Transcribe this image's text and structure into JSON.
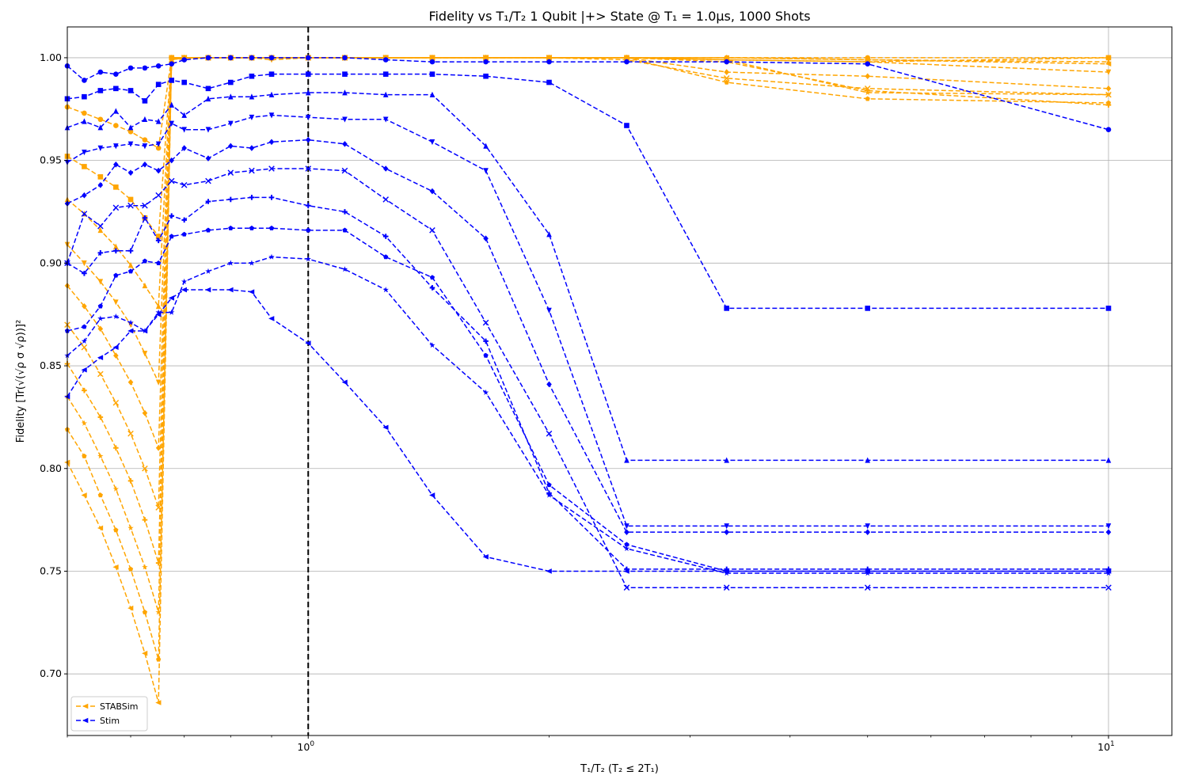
{
  "chart_data": {
    "type": "line",
    "title": "Fidelity vs T₁/T₂ 1 Qubit |+> State @ T₁ = 1.0μs, 1000 Shots",
    "xlabel": "T₁/T₂ (T₂ ≤ 2T₁)",
    "ylabel": "Fidelity [Tr(√(√ρ σ √ρ))]²",
    "xscale": "log",
    "xlim": [
      0.5,
      12
    ],
    "ylim": [
      0.67,
      1.015
    ],
    "grid": true,
    "legend_position": "lower-left",
    "vline_x": 1.0,
    "yticks": [
      {
        "value": 0.7,
        "label": "0.70"
      },
      {
        "value": 0.75,
        "label": "0.75"
      },
      {
        "value": 0.8,
        "label": "0.80"
      },
      {
        "value": 0.85,
        "label": "0.85"
      },
      {
        "value": 0.9,
        "label": "0.90"
      },
      {
        "value": 0.95,
        "label": "0.95"
      },
      {
        "value": 1.0,
        "label": "1.00"
      }
    ],
    "xticks_major": [
      {
        "value": 1,
        "label": "10",
        "exp": "0"
      },
      {
        "value": 10,
        "label": "10",
        "exp": "1"
      }
    ],
    "xticks_minor": [
      0.5,
      0.6,
      0.7,
      0.8,
      0.9,
      2,
      3,
      4,
      5,
      6,
      7,
      8,
      9
    ],
    "x": [
      0.5,
      0.525,
      0.55,
      0.575,
      0.6,
      0.625,
      0.65,
      0.675,
      0.7,
      0.75,
      0.8,
      0.85,
      0.9,
      1.0,
      1.111,
      1.25,
      1.429,
      1.667,
      2.0,
      2.5,
      3.333,
      5.0,
      10.0
    ],
    "legend": [
      {
        "name": "STABSim",
        "color": "#ffa500",
        "marker": "triangle-left"
      },
      {
        "name": "Stim",
        "color": "#0000ff",
        "marker": "triangle-left"
      }
    ],
    "series": [
      {
        "color": "#ffa500",
        "marker": "circle",
        "values": [
          0.976,
          0.973,
          0.97,
          0.967,
          0.964,
          0.96,
          0.956,
          1.0,
          1.0,
          1.0,
          1.0,
          1.0,
          1.0,
          1.0,
          1.0,
          1.0,
          1.0,
          1.0,
          1.0,
          1.0,
          1.0,
          1.0,
          1.0
        ]
      },
      {
        "color": "#ffa500",
        "marker": "square",
        "values": [
          0.952,
          0.947,
          0.942,
          0.937,
          0.931,
          0.922,
          0.913,
          1.0,
          1.0,
          1.0,
          1.0,
          1.0,
          1.0,
          1.0,
          1.0,
          1.0,
          1.0,
          1.0,
          1.0,
          1.0,
          0.999,
          0.998,
          1.0
        ]
      },
      {
        "color": "#ffa500",
        "marker": "triangle-up",
        "values": [
          0.931,
          0.924,
          0.916,
          0.908,
          0.899,
          0.889,
          0.879,
          0.999,
          1.0,
          1.0,
          1.0,
          1.0,
          1.0,
          1.0,
          1.0,
          1.0,
          1.0,
          1.0,
          1.0,
          1.0,
          1.0,
          0.999,
          0.998
        ]
      },
      {
        "color": "#ffa500",
        "marker": "triangle-down",
        "values": [
          0.909,
          0.9,
          0.891,
          0.881,
          0.87,
          0.856,
          0.842,
          1.0,
          0.999,
          1.0,
          1.0,
          1.0,
          0.999,
          1.0,
          1.0,
          1.0,
          1.0,
          1.0,
          1.0,
          1.0,
          0.999,
          0.998,
          0.993
        ]
      },
      {
        "color": "#ffa500",
        "marker": "diamond",
        "values": [
          0.889,
          0.879,
          0.868,
          0.855,
          0.842,
          0.827,
          0.81,
          1.0,
          1.0,
          1.0,
          1.0,
          1.0,
          1.0,
          1.0,
          1.0,
          1.0,
          1.0,
          1.0,
          1.0,
          1.0,
          0.993,
          0.991,
          0.985
        ]
      },
      {
        "color": "#ffa500",
        "marker": "x",
        "values": [
          0.87,
          0.859,
          0.846,
          0.832,
          0.817,
          0.8,
          0.781,
          0.999,
          1.0,
          1.0,
          1.0,
          1.0,
          1.0,
          1.0,
          1.0,
          1.0,
          1.0,
          1.0,
          1.0,
          0.999,
          0.99,
          0.985,
          0.982
        ]
      },
      {
        "color": "#ffa500",
        "marker": "plus",
        "values": [
          0.851,
          0.838,
          0.825,
          0.81,
          0.794,
          0.775,
          0.754,
          1.0,
          1.0,
          1.0,
          1.0,
          1.0,
          1.0,
          1.0,
          1.0,
          1.0,
          1.0,
          1.0,
          1.0,
          1.0,
          0.998,
          0.984,
          0.977
        ]
      },
      {
        "color": "#ffa500",
        "marker": "pentagon",
        "values": [
          0.819,
          0.806,
          0.787,
          0.77,
          0.751,
          0.73,
          0.707,
          1.0,
          1.0,
          1.0,
          1.0,
          1.0,
          1.0,
          1.0,
          1.0,
          1.0,
          1.0,
          1.0,
          1.0,
          1.0,
          0.988,
          0.98,
          0.978
        ]
      },
      {
        "color": "#ffa500",
        "marker": "star",
        "values": [
          0.835,
          0.822,
          0.806,
          0.79,
          0.771,
          0.752,
          0.73,
          1.0,
          1.0,
          1.0,
          1.0,
          1.0,
          1.0,
          1.0,
          1.0,
          1.0,
          1.0,
          1.0,
          1.0,
          1.0,
          0.999,
          0.983,
          0.982
        ]
      },
      {
        "color": "#ffa500",
        "marker": "triangle-left",
        "values": [
          0.803,
          0.787,
          0.771,
          0.752,
          0.732,
          0.71,
          0.686,
          1.0,
          1.0,
          1.0,
          1.0,
          1.0,
          1.0,
          1.0,
          1.0,
          1.0,
          1.0,
          1.0,
          1.0,
          1.0,
          1.0,
          0.999,
          0.997
        ]
      },
      {
        "color": "#0000ff",
        "marker": "circle",
        "values": [
          0.996,
          0.989,
          0.993,
          0.992,
          0.995,
          0.995,
          0.996,
          0.997,
          0.999,
          1.0,
          1.0,
          1.0,
          1.0,
          1.0,
          1.0,
          0.999,
          0.998,
          0.998,
          0.998,
          0.998,
          0.998,
          0.997,
          0.965
        ]
      },
      {
        "color": "#0000ff",
        "marker": "square",
        "values": [
          0.98,
          0.981,
          0.984,
          0.985,
          0.984,
          0.979,
          0.987,
          0.989,
          0.988,
          0.985,
          0.988,
          0.991,
          0.992,
          0.992,
          0.992,
          0.992,
          0.992,
          0.991,
          0.988,
          0.967,
          0.878,
          0.878,
          0.878
        ]
      },
      {
        "color": "#0000ff",
        "marker": "triangle-up",
        "values": [
          0.966,
          0.969,
          0.966,
          0.974,
          0.966,
          0.97,
          0.969,
          0.977,
          0.972,
          0.98,
          0.981,
          0.981,
          0.982,
          0.983,
          0.983,
          0.982,
          0.982,
          0.957,
          0.914,
          0.804,
          0.804,
          0.804,
          0.804
        ]
      },
      {
        "color": "#0000ff",
        "marker": "triangle-down",
        "values": [
          0.949,
          0.954,
          0.956,
          0.957,
          0.958,
          0.957,
          0.958,
          0.968,
          0.965,
          0.965,
          0.968,
          0.971,
          0.972,
          0.971,
          0.97,
          0.97,
          0.959,
          0.945,
          0.877,
          0.772,
          0.772,
          0.772,
          0.772
        ]
      },
      {
        "color": "#0000ff",
        "marker": "diamond",
        "values": [
          0.929,
          0.933,
          0.938,
          0.948,
          0.944,
          0.948,
          0.945,
          0.95,
          0.956,
          0.951,
          0.957,
          0.956,
          0.959,
          0.96,
          0.958,
          0.946,
          0.935,
          0.912,
          0.841,
          0.769,
          0.769,
          0.769,
          0.769
        ]
      },
      {
        "color": "#0000ff",
        "marker": "x",
        "values": [
          0.9,
          0.924,
          0.918,
          0.927,
          0.928,
          0.928,
          0.933,
          0.94,
          0.938,
          0.94,
          0.944,
          0.945,
          0.946,
          0.946,
          0.945,
          0.931,
          0.916,
          0.871,
          0.817,
          0.742,
          0.742,
          0.742,
          0.742
        ]
      },
      {
        "color": "#0000ff",
        "marker": "plus",
        "values": [
          0.9,
          0.895,
          0.905,
          0.906,
          0.906,
          0.922,
          0.911,
          0.923,
          0.921,
          0.93,
          0.931,
          0.932,
          0.932,
          0.928,
          0.925,
          0.913,
          0.888,
          0.862,
          0.788,
          0.751,
          0.751,
          0.751,
          0.751
        ]
      },
      {
        "color": "#0000ff",
        "marker": "pentagon",
        "values": [
          0.867,
          0.869,
          0.879,
          0.894,
          0.896,
          0.901,
          0.9,
          0.913,
          0.914,
          0.916,
          0.917,
          0.917,
          0.917,
          0.916,
          0.916,
          0.903,
          0.893,
          0.855,
          0.792,
          0.763,
          0.75,
          0.75,
          0.75
        ]
      },
      {
        "color": "#0000ff",
        "marker": "star",
        "values": [
          0.855,
          0.862,
          0.873,
          0.874,
          0.871,
          0.867,
          0.876,
          0.876,
          0.891,
          0.896,
          0.9,
          0.9,
          0.903,
          0.902,
          0.897,
          0.887,
          0.86,
          0.837,
          0.787,
          0.761,
          0.749,
          0.749,
          0.749
        ]
      },
      {
        "color": "#0000ff",
        "marker": "triangle-left",
        "values": [
          0.835,
          0.848,
          0.854,
          0.859,
          0.867,
          0.867,
          0.875,
          0.883,
          0.887,
          0.887,
          0.887,
          0.886,
          0.873,
          0.861,
          0.842,
          0.82,
          0.787,
          0.757,
          0.75,
          0.75,
          0.75,
          0.75,
          0.75
        ]
      }
    ]
  }
}
